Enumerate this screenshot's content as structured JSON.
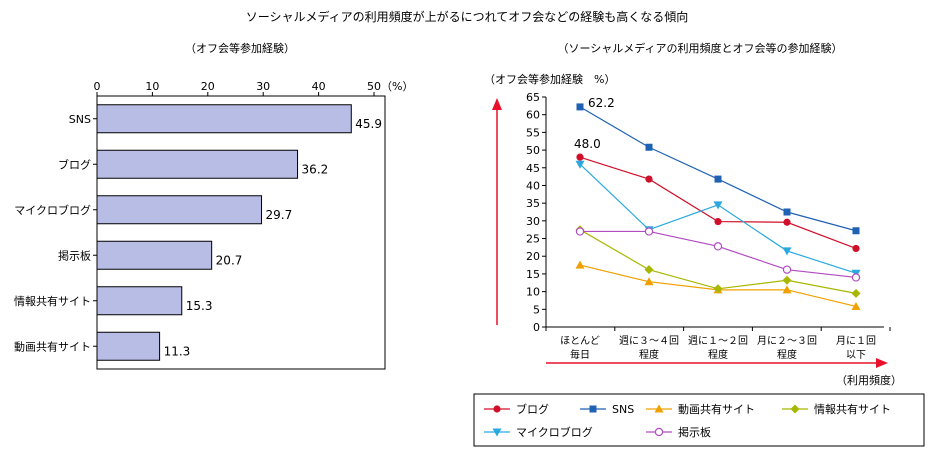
{
  "title": "ソーシャルメディアの利用頻度が上がるにつれてオフ会などの経験も高くなる傾向",
  "colors": {
    "bar_fill": "#b8bde6",
    "bar_stroke": "#000000",
    "blog": "#d0102a",
    "sns": "#1f62b4",
    "video": "#f0a000",
    "info": "#a8b800",
    "micro": "#29a9e0",
    "board": "#b04cc0",
    "arrow": "#e8102a"
  },
  "chart_data": [
    {
      "type": "bar",
      "orientation": "horizontal",
      "title": "（オフ会等参加経験）",
      "categories": [
        "SNS",
        "ブログ",
        "マイクロブログ",
        "掲示板",
        "情報共有サイト",
        "動画共有サイト"
      ],
      "values": [
        45.9,
        36.2,
        29.7,
        20.7,
        15.3,
        11.3
      ],
      "value_labels": [
        "45.9",
        "36.2",
        "29.7",
        "20.7",
        "15.3",
        "11.3"
      ],
      "xlim": [
        0,
        50
      ],
      "xticks": [
        0,
        10,
        20,
        30,
        40,
        50
      ],
      "xtick_labels": [
        "0",
        "10",
        "20",
        "30",
        "40",
        "50"
      ],
      "unit_label": "（%）",
      "grid": false
    },
    {
      "type": "line",
      "title": "（ソーシャルメディアの利用頻度とオフ会等の参加経験）",
      "ylabel": "（オフ会等参加経験　%）",
      "xlabel": "（利用頻度）",
      "categories": [
        [
          "ほとんど",
          "毎日"
        ],
        [
          "週に３～４回",
          "程度"
        ],
        [
          "週に１～２回",
          "程度"
        ],
        [
          "月に２～３回",
          "程度"
        ],
        [
          "月に１回",
          "以下"
        ]
      ],
      "ylim": [
        0,
        65
      ],
      "yticks": [
        0,
        5,
        10,
        15,
        20,
        25,
        30,
        35,
        40,
        45,
        50,
        55,
        60,
        65
      ],
      "ytick_labels": [
        "0",
        "5",
        "10",
        "15",
        "20",
        "25",
        "30",
        "35",
        "40",
        "45",
        "50",
        "55",
        "60",
        "65"
      ],
      "series": [
        {
          "key": "blog",
          "name": "ブログ",
          "marker": "circle-filled",
          "values": [
            48.0,
            41.8,
            29.8,
            29.6,
            22.2
          ]
        },
        {
          "key": "sns",
          "name": "SNS",
          "marker": "square",
          "values": [
            62.2,
            50.8,
            41.8,
            32.5,
            27.2
          ]
        },
        {
          "key": "video",
          "name": "動画共有サイト",
          "marker": "triangle-up",
          "values": [
            17.5,
            12.8,
            10.5,
            10.5,
            5.8
          ]
        },
        {
          "key": "info",
          "name": "情報共有サイト",
          "marker": "diamond",
          "values": [
            27.5,
            16.2,
            10.8,
            13.2,
            9.5
          ]
        },
        {
          "key": "micro",
          "name": "マイクロブログ",
          "marker": "triangle-down",
          "values": [
            46.0,
            27.5,
            34.5,
            21.5,
            15.2
          ]
        },
        {
          "key": "board",
          "name": "掲示板",
          "marker": "circle-open",
          "values": [
            27.0,
            27.0,
            22.8,
            16.2,
            14.0
          ]
        }
      ],
      "annotations": [
        {
          "series": "sns",
          "index": 0,
          "text": "62.2"
        },
        {
          "series": "blog",
          "index": 0,
          "text": "48.0"
        }
      ],
      "legend_position": "bottom"
    }
  ]
}
